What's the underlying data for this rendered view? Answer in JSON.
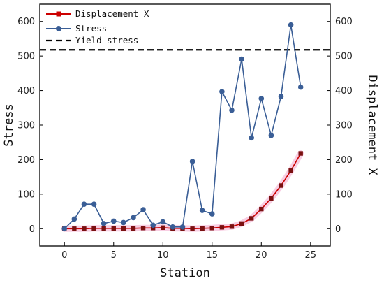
{
  "chart_data": {
    "type": "line",
    "xlabel": "Station",
    "ylabel_left": "Stress",
    "ylabel_right": "Displacement X",
    "xlim": [
      -2.5,
      27
    ],
    "ylim_left": [
      -50,
      650
    ],
    "ylim_right": [
      -50,
      650
    ],
    "xticks": [
      0,
      5,
      10,
      15,
      20,
      25
    ],
    "yticks": [
      0,
      100,
      200,
      300,
      400,
      500,
      600
    ],
    "grid": false,
    "legend_position": "top-left",
    "series": [
      {
        "name": "Displacement X",
        "color": "#cc0000",
        "marker": "square",
        "axis": "right",
        "x": [
          0,
          1,
          2,
          3,
          4,
          5,
          6,
          7,
          8,
          9,
          10,
          11,
          12,
          13,
          14,
          15,
          16,
          17,
          18,
          19,
          20,
          21,
          22,
          23,
          24
        ],
        "y": [
          0,
          0,
          0,
          1,
          1,
          1,
          1,
          1,
          2,
          2,
          3,
          1,
          1,
          0,
          1,
          2,
          4,
          6,
          15,
          30,
          57,
          88,
          125,
          168,
          218
        ]
      },
      {
        "name": "Stress",
        "color": "#3a5e96",
        "marker": "circle",
        "axis": "left",
        "x": [
          0,
          1,
          2,
          3,
          4,
          5,
          6,
          7,
          8,
          9,
          10,
          11,
          12,
          13,
          14,
          15,
          16,
          17,
          18,
          19,
          20,
          21,
          22,
          23,
          24
        ],
        "y": [
          0,
          28,
          71,
          71,
          15,
          22,
          18,
          32,
          55,
          10,
          20,
          5,
          5,
          195,
          53,
          43,
          397,
          343,
          491,
          263,
          377,
          270,
          383,
          590,
          410
        ]
      },
      {
        "name": "Yield stress",
        "color": "#000000",
        "style": "dashed",
        "axis": "left",
        "value": 518
      }
    ]
  }
}
